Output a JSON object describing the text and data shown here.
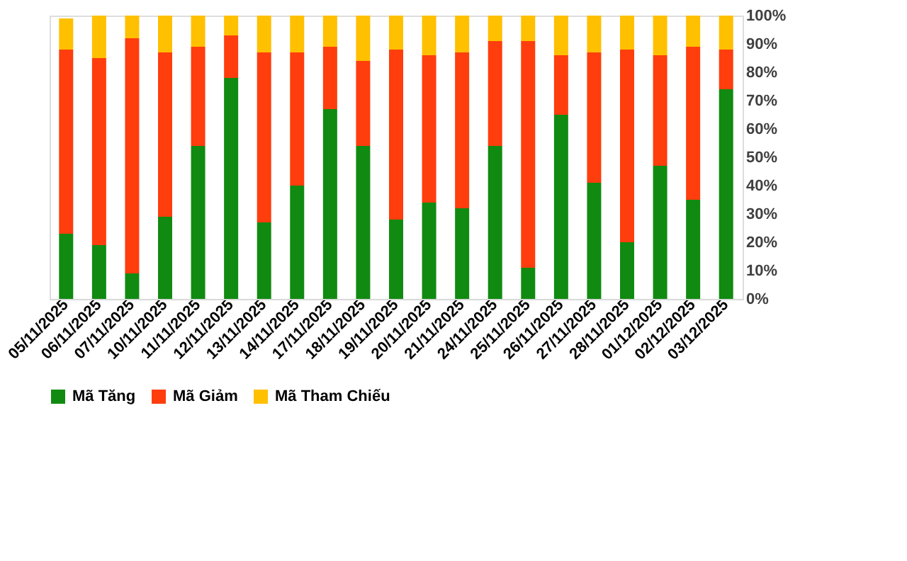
{
  "chart_data": {
    "type": "bar",
    "stacked": true,
    "categories": [
      "05/11/2025",
      "06/11/2025",
      "07/11/2025",
      "10/11/2025",
      "11/11/2025",
      "12/11/2025",
      "13/11/2025",
      "14/11/2025",
      "17/11/2025",
      "18/11/2025",
      "19/11/2025",
      "20/11/2025",
      "21/11/2025",
      "24/11/2025",
      "25/11/2025",
      "26/11/2025",
      "27/11/2025",
      "28/11/2025",
      "01/12/2025",
      "02/12/2025",
      "03/12/2025"
    ],
    "series": [
      {
        "name": "Mã Tăng",
        "color": "#118a11",
        "values": [
          23,
          19,
          9,
          29,
          54,
          78,
          27,
          40,
          67,
          54,
          28,
          34,
          32,
          54,
          11,
          65,
          41,
          20,
          47,
          35,
          74
        ]
      },
      {
        "name": "Mã Giảm",
        "color": "#ff3d0d",
        "values": [
          65,
          66,
          83,
          58,
          35,
          15,
          60,
          47,
          22,
          30,
          60,
          52,
          55,
          37,
          80,
          21,
          46,
          68,
          39,
          54,
          14
        ]
      },
      {
        "name": "Mã Tham Chiếu",
        "color": "#ffc000",
        "values": [
          11,
          15,
          8,
          13,
          11,
          7,
          13,
          13,
          11,
          16,
          12,
          14,
          13,
          9,
          9,
          14,
          13,
          12,
          14,
          11,
          12
        ]
      }
    ],
    "ylim": [
      0,
      100
    ],
    "yticks": [
      {
        "value": 0,
        "label": "0%"
      },
      {
        "value": 10,
        "label": "10%"
      },
      {
        "value": 20,
        "label": "20%"
      },
      {
        "value": 30,
        "label": "30%"
      },
      {
        "value": 40,
        "label": "40%"
      },
      {
        "value": 50,
        "label": "50%"
      },
      {
        "value": 60,
        "label": "60%"
      },
      {
        "value": 70,
        "label": "70%"
      },
      {
        "value": 80,
        "label": "80%"
      },
      {
        "value": 90,
        "label": "90%"
      },
      {
        "value": 100,
        "label": "100%"
      }
    ],
    "grid": false,
    "legend": "bottom"
  }
}
